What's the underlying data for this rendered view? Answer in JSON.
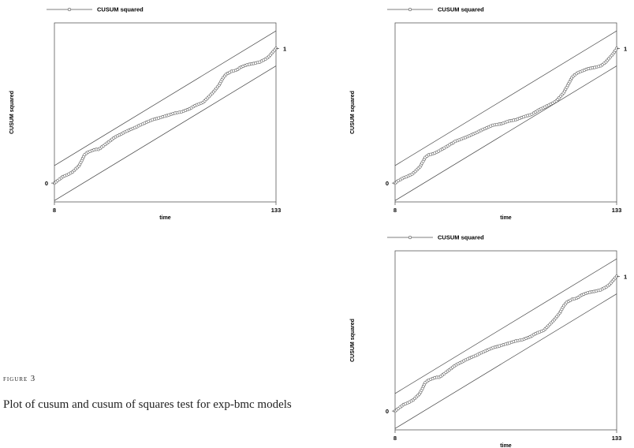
{
  "caption": {
    "label": "figure 3",
    "text": "Plot of cusum and cusum of squares test for exp-bmc models"
  },
  "chart_data": [
    {
      "type": "line",
      "legend": "CUSUM squared",
      "xlabel": "time",
      "ylabel": "CUSUM squared",
      "xticks": [
        "8",
        "133"
      ],
      "yticks": [
        "0",
        "1"
      ],
      "xlim": [
        8,
        133
      ],
      "ylim": [
        -0.14,
        1.19
      ],
      "series": [
        {
          "name": "CUSUM squared",
          "x": [
            8,
            10,
            13,
            15,
            18,
            22,
            25,
            27,
            29,
            31,
            33,
            37,
            42,
            48,
            53,
            58,
            63,
            66,
            71,
            76,
            80,
            84,
            88,
            92,
            95,
            98,
            101,
            103,
            105,
            108,
            111,
            113,
            117,
            121,
            124,
            127,
            129,
            131,
            133
          ],
          "y": [
            0.0,
            0.02,
            0.05,
            0.06,
            0.08,
            0.13,
            0.21,
            0.23,
            0.24,
            0.25,
            0.25,
            0.29,
            0.34,
            0.38,
            0.41,
            0.44,
            0.47,
            0.48,
            0.5,
            0.52,
            0.53,
            0.55,
            0.58,
            0.6,
            0.64,
            0.68,
            0.73,
            0.78,
            0.81,
            0.83,
            0.84,
            0.86,
            0.88,
            0.89,
            0.9,
            0.92,
            0.94,
            0.97,
            1.0
          ]
        },
        {
          "name": "upper bound",
          "x": [
            8,
            133
          ],
          "y": [
            0.13,
            1.13
          ]
        },
        {
          "name": "lower bound",
          "x": [
            8,
            133
          ],
          "y": [
            -0.13,
            0.87
          ]
        }
      ]
    },
    {
      "type": "line",
      "legend": "CUSUM squared",
      "xlabel": "time",
      "ylabel": "CUSUM squared",
      "xticks": [
        "8",
        "133"
      ],
      "yticks": [
        "0",
        "1"
      ],
      "xlim": [
        8,
        133
      ],
      "ylim": [
        -0.14,
        1.19
      ],
      "series": [
        {
          "name": "CUSUM squared",
          "x": [
            8,
            10,
            13,
            15,
            18,
            22,
            25,
            27,
            30,
            33,
            37,
            42,
            48,
            53,
            58,
            63,
            68,
            72,
            76,
            80,
            85,
            90,
            95,
            99,
            103,
            106,
            108,
            111,
            113,
            117,
            121,
            124,
            127,
            129,
            131,
            133
          ],
          "y": [
            0.0,
            0.02,
            0.04,
            0.05,
            0.07,
            0.12,
            0.19,
            0.21,
            0.22,
            0.24,
            0.27,
            0.31,
            0.34,
            0.37,
            0.4,
            0.43,
            0.44,
            0.46,
            0.47,
            0.49,
            0.51,
            0.55,
            0.58,
            0.61,
            0.67,
            0.74,
            0.79,
            0.82,
            0.83,
            0.85,
            0.86,
            0.87,
            0.9,
            0.93,
            0.96,
            1.0
          ]
        },
        {
          "name": "upper bound",
          "x": [
            8,
            133
          ],
          "y": [
            0.13,
            1.13
          ]
        },
        {
          "name": "lower bound",
          "x": [
            8,
            133
          ],
          "y": [
            -0.13,
            0.87
          ]
        }
      ]
    },
    {
      "type": "line",
      "legend": "CUSUM squared",
      "xlabel": "time",
      "ylabel": "CUSUM squared",
      "xticks": [
        "8",
        "133"
      ],
      "yticks": [
        "0",
        "1"
      ],
      "xlim": [
        8,
        133
      ],
      "ylim": [
        -0.14,
        1.19
      ],
      "series": [
        {
          "name": "CUSUM squared",
          "x": [
            8,
            10,
            13,
            15,
            18,
            22,
            25,
            27,
            29,
            31,
            33,
            37,
            42,
            48,
            53,
            58,
            63,
            66,
            71,
            76,
            80,
            84,
            88,
            92,
            95,
            98,
            101,
            103,
            105,
            108,
            111,
            113,
            117,
            121,
            124,
            127,
            129,
            131,
            133
          ],
          "y": [
            0.0,
            0.02,
            0.05,
            0.06,
            0.08,
            0.13,
            0.21,
            0.23,
            0.24,
            0.25,
            0.25,
            0.29,
            0.34,
            0.38,
            0.41,
            0.44,
            0.47,
            0.48,
            0.5,
            0.52,
            0.53,
            0.55,
            0.58,
            0.6,
            0.64,
            0.68,
            0.73,
            0.78,
            0.81,
            0.83,
            0.84,
            0.86,
            0.88,
            0.89,
            0.9,
            0.92,
            0.94,
            0.97,
            1.0
          ]
        },
        {
          "name": "upper bound",
          "x": [
            8,
            133
          ],
          "y": [
            0.13,
            1.13
          ]
        },
        {
          "name": "lower bound",
          "x": [
            8,
            133
          ],
          "y": [
            -0.13,
            0.87
          ]
        }
      ]
    }
  ]
}
